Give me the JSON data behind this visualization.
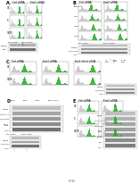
{
  "bg": "#ffffff",
  "fw": 1.5,
  "fh": 2.06,
  "dpi": 100,
  "green": "#22aa22",
  "gray": "#cccccc",
  "darkgray": "#888888",
  "black": "#000000",
  "lightgray": "#eeeeee",
  "wbbg": "#e8e8e8",
  "wbband": "#555555"
}
